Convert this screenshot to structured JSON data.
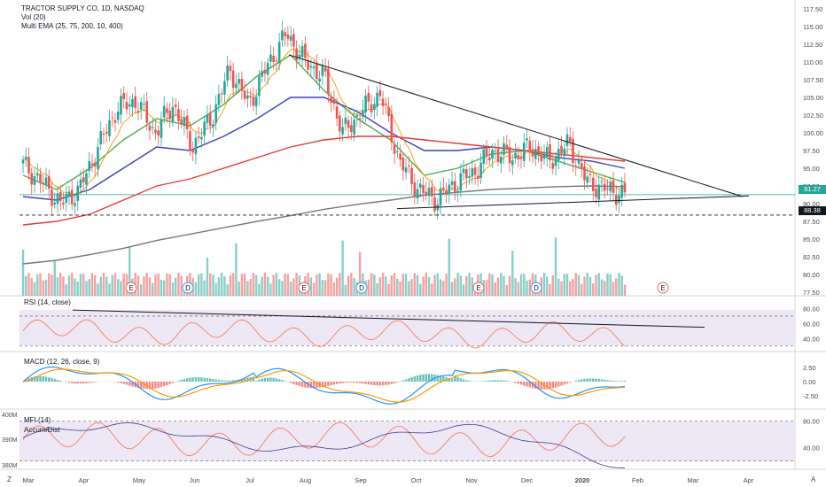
{
  "header": {
    "symbol_line": "TRACTOR SUPPLY CO, 1D, NASDAQ",
    "vol_label": "Vol (20)",
    "ema_label": "Multi EMA (25, 75, 200, 10, 400)"
  },
  "price_axis": {
    "ticks": [
      "117.50",
      "115.00",
      "112.50",
      "110.00",
      "107.50",
      "105.00",
      "102.50",
      "100.00",
      "97.50",
      "95.00",
      "92.50",
      "90.00",
      "87.50",
      "85.00",
      "82.50",
      "80.00",
      "77.50"
    ],
    "last_price": "91.27",
    "support_price": "88.38",
    "last_color": "#26a69a",
    "support_color": "#131722"
  },
  "rsi": {
    "label": "RSI (14, close)",
    "ticks": [
      "80.00",
      "60.00",
      "40.00"
    ]
  },
  "macd": {
    "label": "MACD (12, 26, close, 9)",
    "ticks": [
      "2.50",
      "0.00",
      "-2.50"
    ]
  },
  "mfi": {
    "label": "MFI (14)",
    "sub_label": "Accum/Dist",
    "ticks": [
      "80.00",
      "40.00"
    ],
    "left_ticks": [
      "400M",
      "390M",
      "380M"
    ]
  },
  "time_axis": {
    "labels": [
      "Mar",
      "Apr",
      "May",
      "Jun",
      "Jul",
      "Aug",
      "Sep",
      "Oct",
      "Nov",
      "Dec",
      "2020",
      "Feb",
      "Mar",
      "Apr"
    ],
    "bold_label": "2020"
  },
  "corners": {
    "left": "Z",
    "right": "A"
  },
  "events": [
    "E",
    "D",
    "E",
    "D",
    "E",
    "D",
    "E"
  ],
  "colors": {
    "up": "#26a69a",
    "down": "#ef5350",
    "ema25": "#4caf50",
    "ema75": "#3f3fbf",
    "ema200": "#e53935",
    "ema10": "#ff9800",
    "ema400": "#787878",
    "rsi_line": "#ff7043",
    "rsi_bg": "#ede7f6",
    "macd_line": "#2196f3",
    "signal_line": "#ff9800",
    "mfi_line": "#ff7043",
    "ad_line": "#3f3f8f"
  },
  "chart_data": {
    "type": "candlestick",
    "title": "TRACTOR SUPPLY CO, 1D, NASDAQ",
    "ylim": [
      77,
      118.5
    ],
    "x_range": [
      "Mar",
      "Apr (next year)"
    ],
    "last_close": 91.27,
    "support_level": 88.38,
    "trendlines": [
      {
        "name": "descending resistance",
        "from": {
          "x": "late Jul",
          "y": 111.0
        },
        "to": {
          "x": "mid Feb",
          "y": 91.0
        }
      },
      {
        "name": "ascending support",
        "from": {
          "x": "late Sep",
          "y": 89.3
        },
        "to": {
          "x": "late Feb",
          "y": 91.1
        }
      }
    ],
    "close_path": [
      {
        "x": "Mar",
        "y": 95.5
      },
      {
        "x": "early Mar",
        "y": 93.0
      },
      {
        "x": "mid Mar",
        "y": 90.0
      },
      {
        "x": "late Mar",
        "y": 92.0
      },
      {
        "x": "Apr",
        "y": 98.0
      },
      {
        "x": "mid Apr",
        "y": 103.5
      },
      {
        "x": "late Apr",
        "y": 104.5
      },
      {
        "x": "May",
        "y": 100.0
      },
      {
        "x": "mid May",
        "y": 104.0
      },
      {
        "x": "late May",
        "y": 98.0
      },
      {
        "x": "Jun",
        "y": 102.0
      },
      {
        "x": "mid Jun",
        "y": 109.0
      },
      {
        "x": "late Jun",
        "y": 104.0
      },
      {
        "x": "Jul",
        "y": 109.5
      },
      {
        "x": "mid Jul",
        "y": 114.0
      },
      {
        "x": "late Jul",
        "y": 110.0
      },
      {
        "x": "Aug",
        "y": 108.0
      },
      {
        "x": "mid Aug",
        "y": 100.0
      },
      {
        "x": "late Aug",
        "y": 103.0
      },
      {
        "x": "early Sep",
        "y": 105.5
      },
      {
        "x": "mid Sep",
        "y": 96.0
      },
      {
        "x": "late Sep",
        "y": 92.0
      },
      {
        "x": "Oct",
        "y": 90.5
      },
      {
        "x": "mid Oct",
        "y": 93.0
      },
      {
        "x": "late Oct",
        "y": 94.5
      },
      {
        "x": "Nov",
        "y": 97.5
      },
      {
        "x": "mid Nov",
        "y": 96.5
      },
      {
        "x": "late Nov",
        "y": 98.0
      },
      {
        "x": "Dec",
        "y": 96.0
      },
      {
        "x": "mid Dec",
        "y": 98.5
      },
      {
        "x": "late Dec",
        "y": 93.0
      },
      {
        "x": "2020",
        "y": 92.0
      },
      {
        "x": "early Jan",
        "y": 91.27
      }
    ],
    "series": [
      {
        "name": "EMA 25",
        "values": [
          94,
          92,
          95,
          99,
          102,
          101,
          104,
          108,
          111,
          106,
          102,
          99,
          94,
          95,
          97,
          97.5,
          96,
          94.5,
          93
        ]
      },
      {
        "name": "EMA 75",
        "values": [
          91,
          90.5,
          92,
          95,
          98,
          97.5,
          99.5,
          102,
          105,
          105,
          103,
          100,
          97.5,
          97.5,
          98,
          97.5,
          96.5,
          96,
          95
        ]
      },
      {
        "name": "EMA 200",
        "values": [
          87,
          87.5,
          88.5,
          90.5,
          92.5,
          93.5,
          95,
          96.5,
          98,
          99,
          99.5,
          99.5,
          99,
          98.5,
          98,
          97.5,
          97,
          96.5,
          96
        ]
      },
      {
        "name": "EMA 400",
        "values": [
          81.5,
          82,
          82.8,
          83.7,
          84.8,
          85.7,
          86.6,
          87.5,
          88.3,
          89.2,
          89.9,
          90.5,
          91.2,
          91.6,
          92,
          92.2,
          92.4,
          92.5,
          92.4
        ]
      }
    ]
  }
}
